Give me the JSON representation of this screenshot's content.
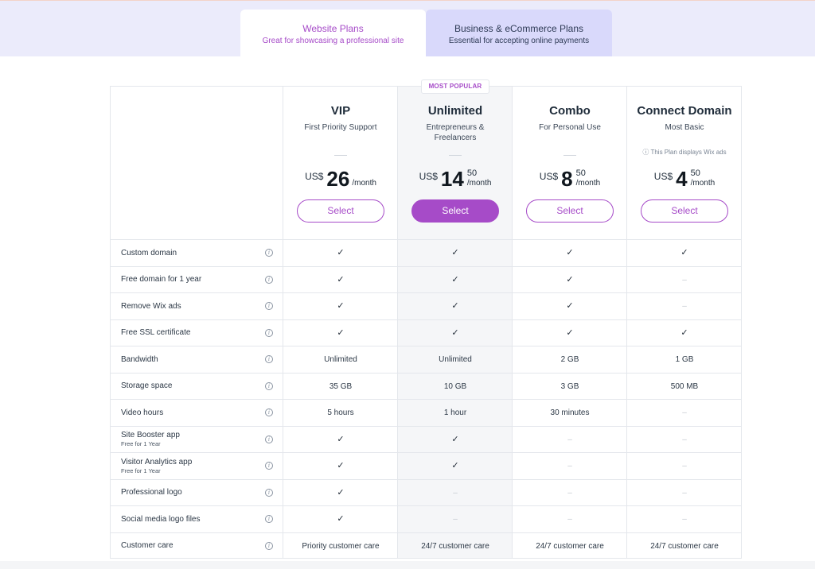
{
  "tabs": [
    {
      "title": "Website Plans",
      "subtitle": "Great for showcasing a professional site",
      "active": true
    },
    {
      "title": "Business & eCommerce Plans",
      "subtitle": "Essential for accepting online payments",
      "active": false
    }
  ],
  "badge": "MOST POPULAR",
  "colors": {
    "accent": "#a64bc8",
    "tab_band": "#ebebfb",
    "inactive_tab": "#d9d9fb",
    "highlight_column": "#f5f6f8"
  },
  "plans": [
    {
      "name": "VIP",
      "description": "First Priority Support",
      "note": "",
      "currency": "US$",
      "amount": "26",
      "cents": "",
      "period": "/month",
      "button": "Select",
      "primary": false
    },
    {
      "name": "Unlimited",
      "description": "Entrepreneurs & Freelancers",
      "note": "",
      "currency": "US$",
      "amount": "14",
      "cents": "50",
      "period": "/month",
      "button": "Select",
      "primary": true
    },
    {
      "name": "Combo",
      "description": "For Personal Use",
      "note": "",
      "currency": "US$",
      "amount": "8",
      "cents": "50",
      "period": "/month",
      "button": "Select",
      "primary": false
    },
    {
      "name": "Connect Domain",
      "description": "Most Basic",
      "note": "ⓘ This Plan displays Wix ads",
      "currency": "US$",
      "amount": "4",
      "cents": "50",
      "period": "/month",
      "button": "Select",
      "primary": false
    }
  ],
  "features": [
    {
      "label": "Custom domain",
      "sub": "",
      "values": [
        "check",
        "check",
        "check",
        "check"
      ]
    },
    {
      "label": "Free domain for 1 year",
      "sub": "",
      "values": [
        "check",
        "check",
        "check",
        "dash"
      ]
    },
    {
      "label": "Remove Wix ads",
      "sub": "",
      "values": [
        "check",
        "check",
        "check",
        "dash"
      ]
    },
    {
      "label": "Free SSL certificate",
      "sub": "",
      "values": [
        "check",
        "check",
        "check",
        "check"
      ]
    },
    {
      "label": "Bandwidth",
      "sub": "",
      "values": [
        "Unlimited",
        "Unlimited",
        "2 GB",
        "1 GB"
      ]
    },
    {
      "label": "Storage space",
      "sub": "",
      "values": [
        "35 GB",
        "10 GB",
        "3 GB",
        "500 MB"
      ]
    },
    {
      "label": "Video hours",
      "sub": "",
      "values": [
        "5 hours",
        "1 hour",
        "30 minutes",
        "dash"
      ]
    },
    {
      "label": "Site Booster app",
      "sub": "Free for 1 Year",
      "values": [
        "check",
        "check",
        "dash",
        "dash"
      ]
    },
    {
      "label": "Visitor Analytics app",
      "sub": "Free for 1 Year",
      "values": [
        "check",
        "check",
        "dash",
        "dash"
      ]
    },
    {
      "label": "Professional logo",
      "sub": "",
      "values": [
        "check",
        "dash",
        "dash",
        "dash"
      ]
    },
    {
      "label": "Social media logo files",
      "sub": "",
      "values": [
        "check",
        "dash",
        "dash",
        "dash"
      ]
    },
    {
      "label": "Customer care",
      "sub": "",
      "values": [
        "Priority customer care",
        "24/7 customer care",
        "24/7 customer care",
        "24/7 customer care"
      ]
    }
  ]
}
